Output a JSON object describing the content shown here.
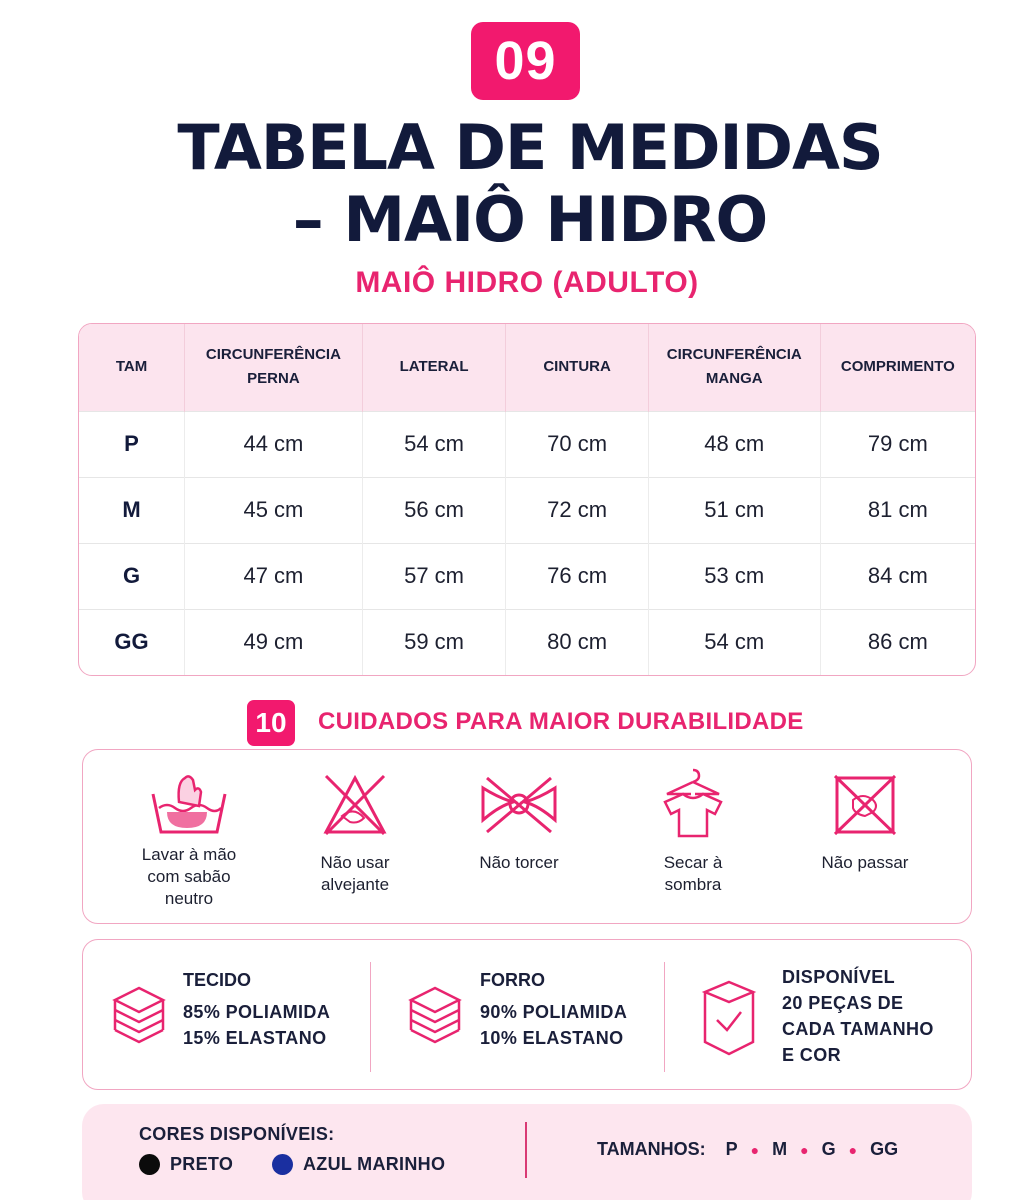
{
  "header": {
    "badge": "09",
    "title_line1": "TABELA DE MEDIDAS",
    "title_line2": "– MAIÔ HIDRO",
    "subtitle": "MAIÔ HIDRO (ADULTO)"
  },
  "table": {
    "headers": [
      "TAM",
      "CIRCUNFERÊNCIA\nPERNA",
      "LATERAL",
      "CINTURA",
      "CIRCUNFERÊNCIA\nMANGA",
      "COMPRIMENTO"
    ],
    "rows": [
      [
        "P",
        "44 cm",
        "54 cm",
        "70 cm",
        "48 cm",
        "79 cm"
      ],
      [
        "M",
        "45 cm",
        "56 cm",
        "72 cm",
        "51 cm",
        "81 cm"
      ],
      [
        "G",
        "47 cm",
        "57 cm",
        "76 cm",
        "53 cm",
        "84 cm"
      ],
      [
        "GG",
        "49 cm",
        "59 cm",
        "80 cm",
        "54 cm",
        "86 cm"
      ]
    ]
  },
  "care": {
    "badge": "10",
    "title": "CUIDADOS PARA MAIOR DURABILIDADE",
    "items": [
      {
        "icon": "hand-wash-icon",
        "label": "Lavar à mão\ncom sabão\nneutro"
      },
      {
        "icon": "no-bleach-icon",
        "label": "Não usar\nalvejante"
      },
      {
        "icon": "no-wring-icon",
        "label": "Não torcer"
      },
      {
        "icon": "shade-dry-icon",
        "label": "Secar à\nsombra"
      },
      {
        "icon": "no-iron-icon",
        "label": "Não passar"
      }
    ]
  },
  "fabric": {
    "tecido": {
      "head": "TECIDO",
      "line1": "85% POLIAMIDA",
      "line2": "15% ELASTANO",
      "icon": "layers-icon"
    },
    "forro": {
      "head": "FORRO",
      "line1": "90% POLIAMIDA",
      "line2": "10% ELASTANO",
      "icon": "layers-icon"
    },
    "disponivel": {
      "line1": "DISPONÍVEL",
      "line2": "20 PEÇAS DE",
      "line3": "CADA TAMANHO",
      "line4": "E COR",
      "icon": "box-check-icon"
    }
  },
  "footer": {
    "colors_title": "CORES DISPONÍVEIS:",
    "colors": [
      {
        "name": "PRETO",
        "hex": "#0b0b0b"
      },
      {
        "name": "AZUL MARINHO",
        "hex": "#1a2fa0"
      }
    ],
    "sizes_label": "TAMANHOS:",
    "sizes": [
      "P",
      "M",
      "G",
      "GG"
    ]
  },
  "colors": {
    "accent": "#f2196e",
    "title": "#121a3b",
    "pink_light": "#fce4ee"
  }
}
